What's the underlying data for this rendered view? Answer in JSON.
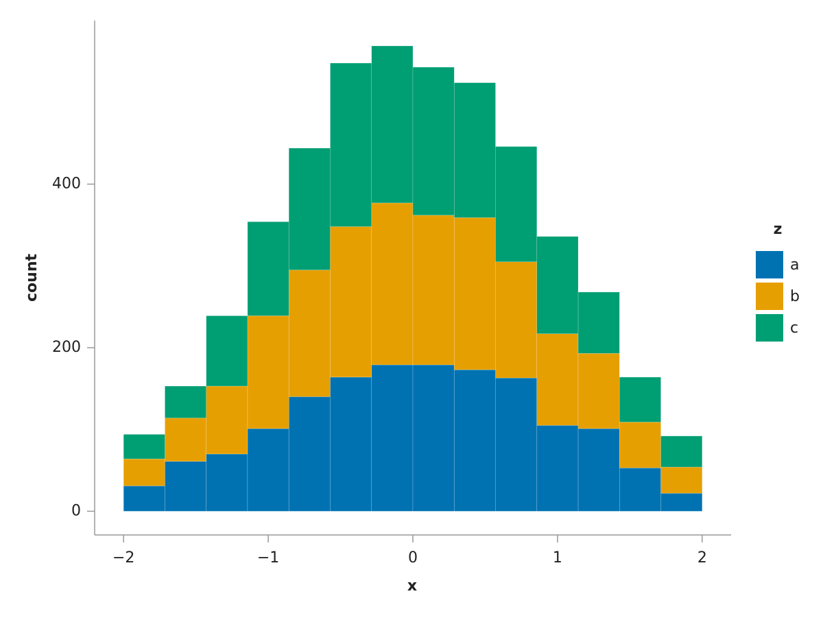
{
  "chart_data": {
    "type": "histogram",
    "stacked": true,
    "x_label": "x",
    "y_label": "count",
    "legend_title": "z",
    "legend_position": "right",
    "bins": [
      -2,
      -1.7143,
      -1.4286,
      -1.1429,
      -0.8571,
      -0.5714,
      -0.2857,
      0,
      0.2857,
      0.5714,
      0.8571,
      1.1429,
      1.4286,
      1.7143,
      2
    ],
    "series": [
      {
        "name": "a",
        "color": "#0072b2",
        "values": [
          31,
          61,
          70,
          101,
          140,
          164,
          179,
          179,
          173,
          163,
          105,
          101,
          53,
          22
        ]
      },
      {
        "name": "b",
        "color": "#e69f00",
        "values": [
          33,
          53,
          83,
          138,
          155,
          184,
          198,
          183,
          186,
          142,
          112,
          92,
          56,
          32
        ]
      },
      {
        "name": "c",
        "color": "#009e73",
        "values": [
          30,
          39,
          86,
          115,
          149,
          200,
          192,
          181,
          165,
          141,
          119,
          75,
          55,
          38
        ]
      }
    ],
    "xlim": [
      -2.2,
      2.2
    ],
    "xticks": [
      {
        "value": -2,
        "label": "−2"
      },
      {
        "value": -1,
        "label": "−1"
      },
      0,
      1,
      2
    ],
    "ylim": [
      -29,
      600
    ],
    "yticks": [
      0,
      200,
      400
    ]
  }
}
